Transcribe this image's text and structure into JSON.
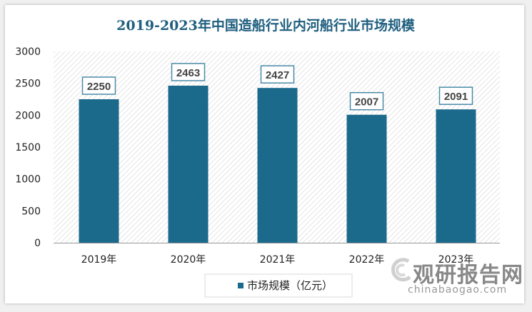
{
  "chart_data": {
    "type": "bar",
    "title": "2019-2023年中国造船行业内河船行业市场规模",
    "categories": [
      "2019年",
      "2020年",
      "2021年",
      "2022年",
      "2023年"
    ],
    "series": [
      {
        "name": "市场规模（亿元）",
        "values": [
          2250,
          2463,
          2427,
          2007,
          2091
        ],
        "color": "#1b6a8c"
      }
    ],
    "ylim": [
      0,
      3000
    ],
    "yticks": [
      0,
      500,
      1000,
      1500,
      2000,
      2500,
      3000
    ],
    "grid": false,
    "legend": "bottom",
    "data_labels": true
  },
  "watermark": {
    "cn": "观研报告网",
    "en": "chinabaogao.com"
  }
}
